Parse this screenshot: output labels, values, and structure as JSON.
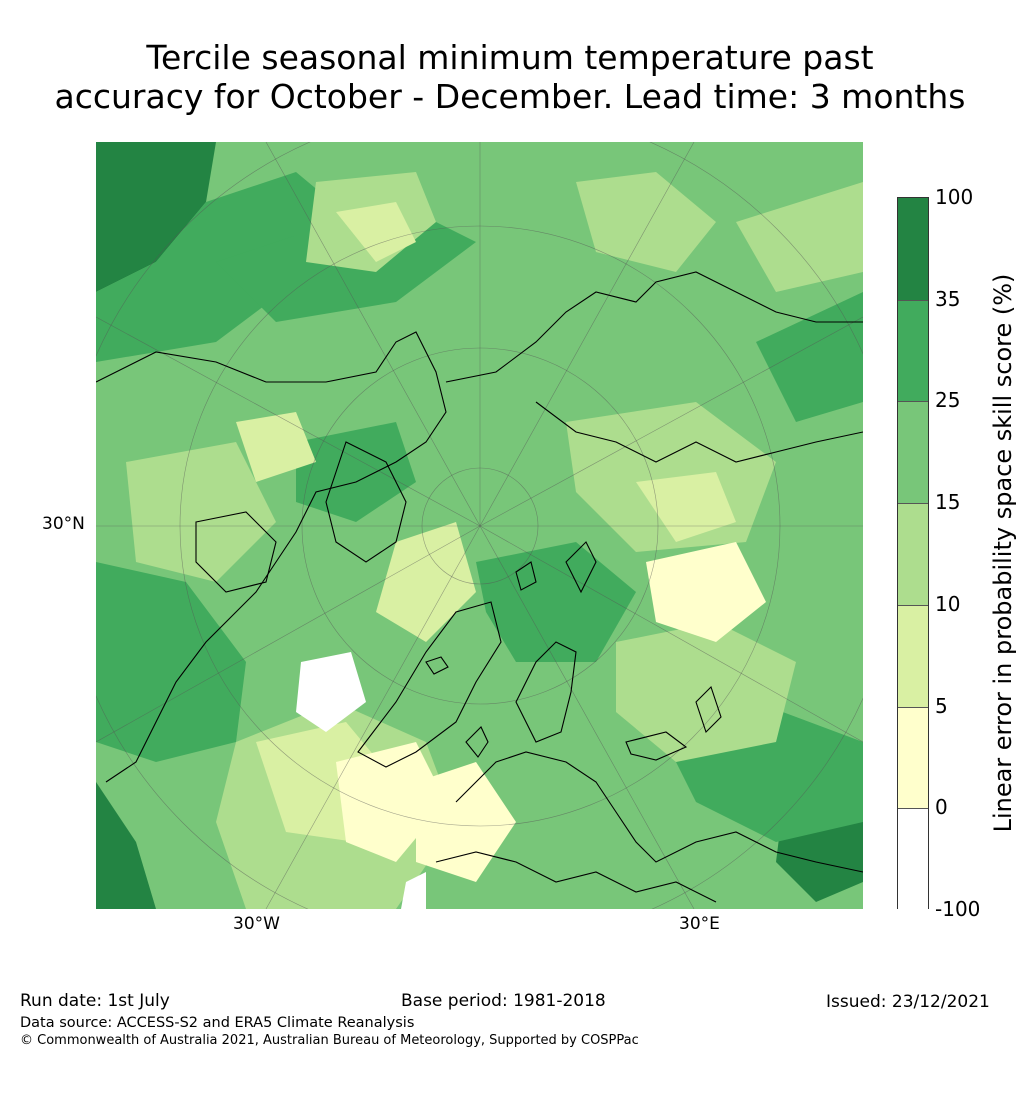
{
  "title": {
    "line1": "Tercile seasonal minimum temperature past",
    "line2": "accuracy for October - December. Lead time: 3 months"
  },
  "map": {
    "projection": "north-polar-stereographic",
    "graticule_labels": {
      "lat": "30°N",
      "lon_west": "30°W",
      "lon_east": "30°E"
    },
    "base_color": "#77c57a",
    "coastline_color": "#000000"
  },
  "colorbar": {
    "label": "Linear error in probability space skill score (%)",
    "ticks": [
      "100",
      "35",
      "25",
      "15",
      "10",
      "5",
      "0",
      "-100"
    ],
    "bins": [
      {
        "from": 35,
        "to": 100,
        "color": "#238443"
      },
      {
        "from": 25,
        "to": 35,
        "color": "#41ab5d"
      },
      {
        "from": 15,
        "to": 25,
        "color": "#78c679"
      },
      {
        "from": 10,
        "to": 15,
        "color": "#addd8e"
      },
      {
        "from": 5,
        "to": 10,
        "color": "#d9f0a3"
      },
      {
        "from": 0,
        "to": 5,
        "color": "#ffffcc"
      },
      {
        "from": -100,
        "to": 0,
        "color": "#ffffff"
      }
    ]
  },
  "footer": {
    "run_date": "Run date: 1st July",
    "base_period": "Base period: 1981-2018",
    "issued": "Issued: 23/12/2021",
    "data_source": "Data source: ACCESS-S2 and ERA5 Climate Reanalysis",
    "copyright": "© Commonwealth of Australia 2021, Australian Bureau of Meteorology, Supported by COSPPac"
  }
}
